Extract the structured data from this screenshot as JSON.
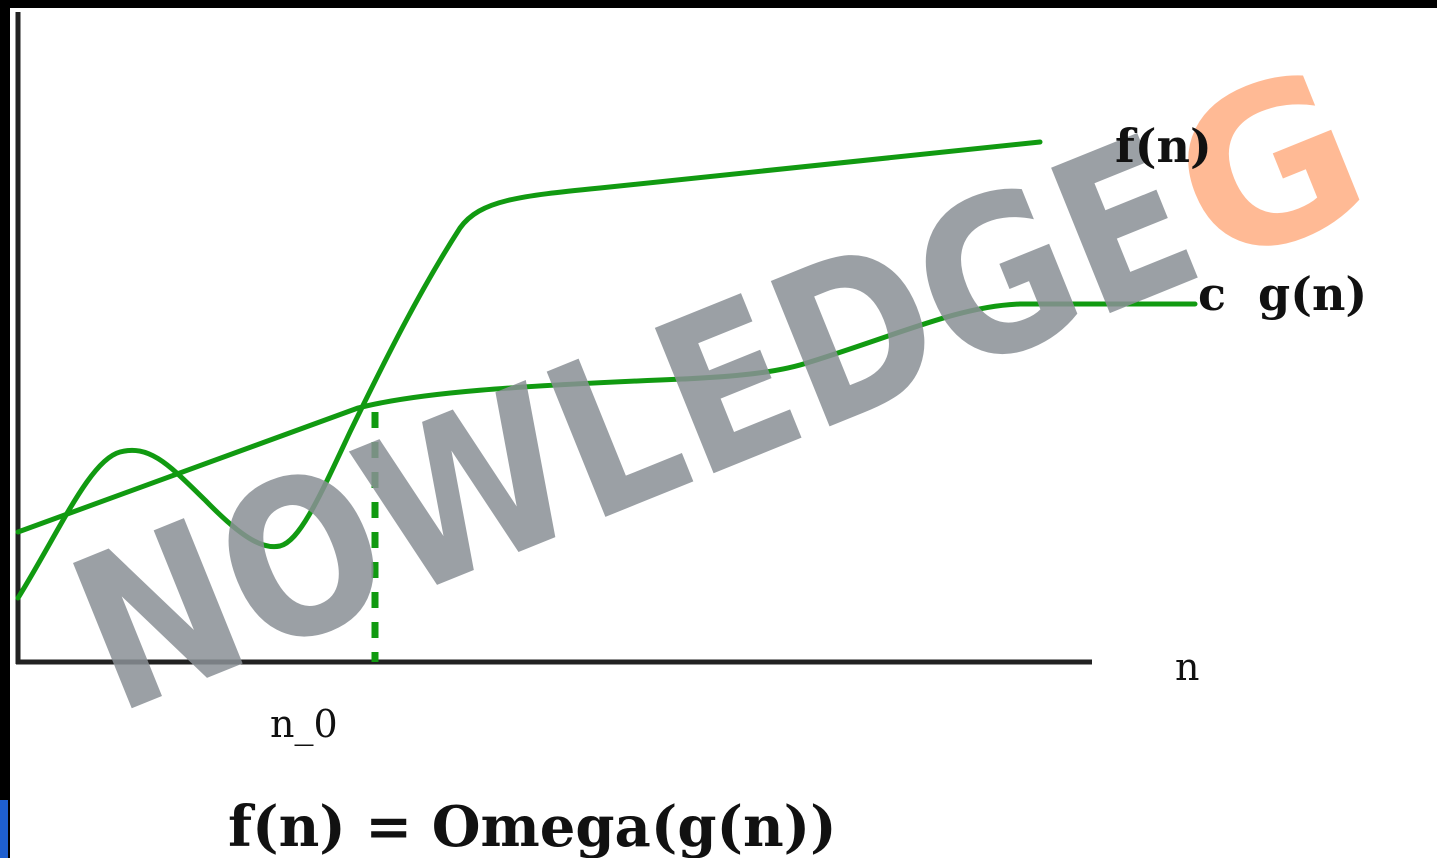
{
  "diagram": {
    "labels": {
      "f_curve": "f(n)",
      "g_curve": "c  g(n)",
      "x_axis": "n",
      "threshold": "n_0",
      "formula": "f(n) = Omega(g(n))"
    },
    "watermark": {
      "text": "NOWLEDGE",
      "accent_text": "G",
      "gray": "#8a9096",
      "orange": "#ffb38a"
    },
    "colors": {
      "curve": "#119a11",
      "axis": "#222222",
      "background": "#ffffff",
      "frame": "#000000"
    }
  }
}
